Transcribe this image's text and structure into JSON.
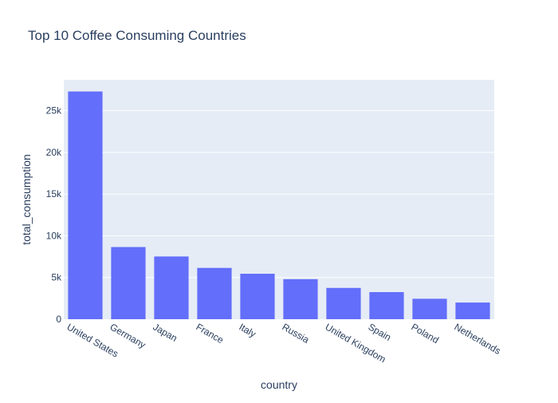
{
  "chart_data": {
    "type": "bar",
    "title": "Top 10 Coffee Consuming Countries",
    "xlabel": "country",
    "ylabel": "total_consumption",
    "categories": [
      "United States",
      "Germany",
      "Japan",
      "France",
      "Italy",
      "Russia",
      "United Kingdom",
      "Spain",
      "Poland",
      "Netherlands"
    ],
    "values": [
      27300,
      8650,
      7520,
      6150,
      5450,
      4800,
      3750,
      3250,
      2450,
      2000
    ],
    "ylim": [
      0,
      28700
    ],
    "yticks": [
      0,
      5000,
      10000,
      15000,
      20000,
      25000
    ],
    "ytick_labels": [
      "0",
      "5k",
      "10k",
      "15k",
      "20k",
      "25k"
    ],
    "grid": true,
    "colors": {
      "bar": "#636efa",
      "plot_bg": "#e5ecf6",
      "grid": "#ffffff",
      "text": "#2a3f5f"
    }
  }
}
